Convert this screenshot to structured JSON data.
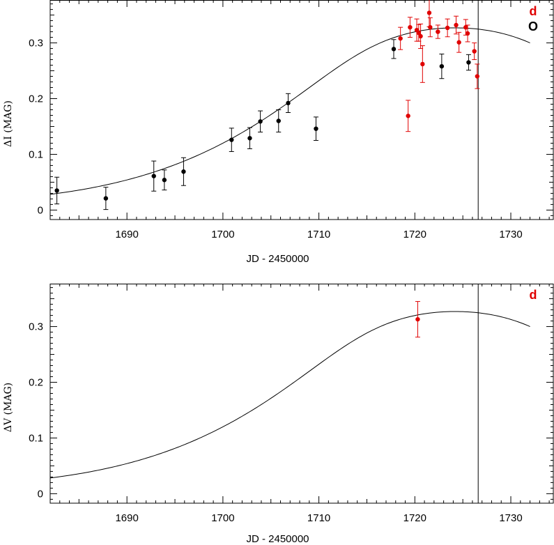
{
  "colors": {
    "ogle": "#000000",
    "planet": "#e00000",
    "axes": "#000000"
  },
  "chart_data": [
    {
      "type": "scatter",
      "title": "",
      "xlabel": "JD - 2450000",
      "ylabel": "ΔI (MAG)",
      "xlim": [
        1682,
        1734.5
      ],
      "ylim": [
        -0.017,
        0.377
      ],
      "xticks": [
        1690,
        1700,
        1710,
        1720,
        1730
      ],
      "yticks": [
        0,
        0.1,
        0.2,
        0.3
      ],
      "vline_x": 1726.6,
      "legend": {
        "position": "top-right",
        "entries": [
          "d",
          "O"
        ]
      },
      "series": [
        {
          "name": "O",
          "color": "#000000",
          "points": [
            [
              1682.7,
              0.035,
              0.024
            ],
            [
              1687.8,
              0.021,
              0.02
            ],
            [
              1692.8,
              0.061,
              0.027
            ],
            [
              1693.9,
              0.054,
              0.018
            ],
            [
              1695.9,
              0.069,
              0.025
            ],
            [
              1700.9,
              0.126,
              0.021
            ],
            [
              1702.8,
              0.129,
              0.019
            ],
            [
              1703.9,
              0.159,
              0.019
            ],
            [
              1705.8,
              0.16,
              0.02
            ],
            [
              1706.8,
              0.192,
              0.017
            ],
            [
              1709.7,
              0.146,
              0.021
            ],
            [
              1717.8,
              0.289,
              0.017
            ],
            [
              1722.8,
              0.258,
              0.022
            ],
            [
              1725.6,
              0.265,
              0.014
            ]
          ]
        },
        {
          "name": "d",
          "color": "#e00000",
          "points": [
            [
              1718.5,
              0.308,
              0.02
            ],
            [
              1719.3,
              0.169,
              0.028
            ],
            [
              1719.5,
              0.328,
              0.018
            ],
            [
              1720.2,
              0.323,
              0.02
            ],
            [
              1720.4,
              0.318,
              0.015
            ],
            [
              1720.6,
              0.312,
              0.022
            ],
            [
              1720.8,
              0.262,
              0.033
            ],
            [
              1721.5,
              0.354,
              0.025
            ],
            [
              1721.6,
              0.328,
              0.017
            ],
            [
              1722.4,
              0.32,
              0.012
            ],
            [
              1723.4,
              0.327,
              0.016
            ],
            [
              1724.3,
              0.332,
              0.016
            ],
            [
              1724.6,
              0.301,
              0.018
            ],
            [
              1725.3,
              0.328,
              0.014
            ],
            [
              1725.5,
              0.317,
              0.015
            ],
            [
              1726.2,
              0.285,
              0.015
            ],
            [
              1726.5,
              0.24,
              0.022
            ]
          ]
        }
      ],
      "model_curve": {
        "baseline": 0.0,
        "peak_x": 1724.2,
        "peak_y": 0.327,
        "width": 17.5
      }
    },
    {
      "type": "scatter",
      "title": "",
      "xlabel": "JD - 2450000",
      "ylabel": "ΔV (MAG)",
      "xlim": [
        1682,
        1734.5
      ],
      "ylim": [
        -0.017,
        0.377
      ],
      "xticks": [
        1690,
        1700,
        1710,
        1720,
        1730
      ],
      "yticks": [
        0,
        0.1,
        0.2,
        0.3
      ],
      "vline_x": 1726.6,
      "legend": {
        "position": "top-right",
        "entries": [
          "d"
        ]
      },
      "series": [
        {
          "name": "d",
          "color": "#e00000",
          "points": [
            [
              1720.3,
              0.313,
              0.032
            ]
          ]
        }
      ],
      "model_curve": {
        "baseline": 0.0,
        "peak_x": 1724.2,
        "peak_y": 0.327,
        "width": 17.5
      }
    }
  ]
}
